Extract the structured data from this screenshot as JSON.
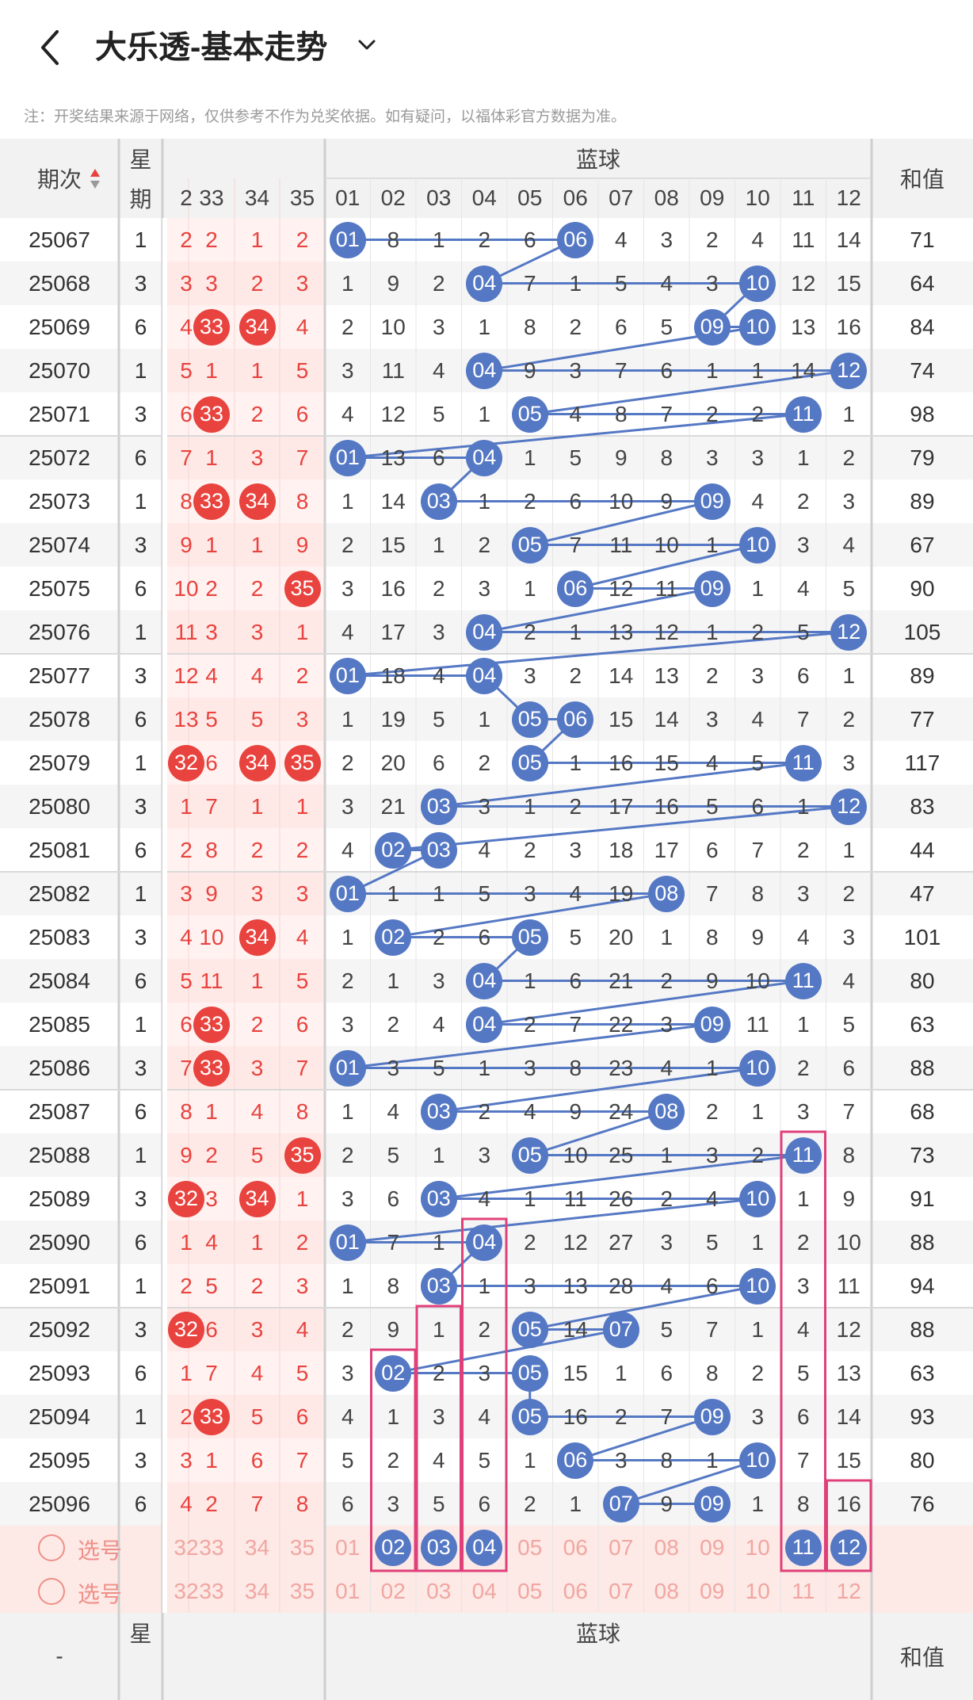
{
  "header": {
    "title": "大乐透-基本走势"
  },
  "note": "注：开奖结果来源于网络，仅供参考不作为兑奖依据。如有疑问，以福体彩官方数据为准。",
  "columns": {
    "period": "期次",
    "weekday_a": "星",
    "weekday_b": "期",
    "blue_group": "蓝球",
    "sum": "和值",
    "red_visible": [
      "2",
      "33",
      "34",
      "35"
    ],
    "blue": [
      "01",
      "02",
      "03",
      "04",
      "05",
      "06",
      "07",
      "08",
      "09",
      "10",
      "11",
      "12"
    ]
  },
  "rows": [
    {
      "p": "25067",
      "w": "1",
      "r": [
        "2",
        "2",
        "1",
        "2"
      ],
      "rh": [],
      "b": [
        "01",
        "8",
        "1",
        "2",
        "6",
        "06",
        "4",
        "3",
        "2",
        "4",
        "11",
        "14"
      ],
      "bh": [
        0,
        5
      ],
      "s": "71"
    },
    {
      "p": "25068",
      "w": "3",
      "r": [
        "3",
        "3",
        "2",
        "3"
      ],
      "rh": [],
      "b": [
        "1",
        "9",
        "2",
        "04",
        "7",
        "1",
        "5",
        "4",
        "3",
        "10",
        "12",
        "15"
      ],
      "bh": [
        3,
        9
      ],
      "s": "64"
    },
    {
      "p": "25069",
      "w": "6",
      "r": [
        "4",
        "33",
        "34",
        "4"
      ],
      "rh": [
        1,
        2
      ],
      "b": [
        "2",
        "10",
        "3",
        "1",
        "8",
        "2",
        "6",
        "5",
        "09",
        "10",
        "13",
        "16"
      ],
      "bh": [
        8,
        9
      ],
      "s": "84"
    },
    {
      "p": "25070",
      "w": "1",
      "r": [
        "5",
        "1",
        "1",
        "5"
      ],
      "rh": [],
      "b": [
        "3",
        "11",
        "4",
        "04",
        "9",
        "3",
        "7",
        "6",
        "1",
        "1",
        "14",
        "12"
      ],
      "bh": [
        3,
        11
      ],
      "s": "74"
    },
    {
      "p": "25071",
      "w": "3",
      "r": [
        "6",
        "33",
        "2",
        "6"
      ],
      "rh": [
        1
      ],
      "b": [
        "4",
        "12",
        "5",
        "1",
        "05",
        "4",
        "8",
        "7",
        "2",
        "2",
        "11",
        "1"
      ],
      "bh": [
        4,
        10
      ],
      "s": "98"
    },
    {
      "p": "25072",
      "w": "6",
      "r": [
        "7",
        "1",
        "3",
        "7"
      ],
      "rh": [],
      "b": [
        "01",
        "13",
        "6",
        "04",
        "1",
        "5",
        "9",
        "8",
        "3",
        "3",
        "1",
        "2"
      ],
      "bh": [
        0,
        3
      ],
      "s": "79"
    },
    {
      "p": "25073",
      "w": "1",
      "r": [
        "8",
        "33",
        "34",
        "8"
      ],
      "rh": [
        1,
        2
      ],
      "b": [
        "1",
        "14",
        "03",
        "1",
        "2",
        "6",
        "10",
        "9",
        "09",
        "4",
        "2",
        "3"
      ],
      "bh": [
        2,
        8
      ],
      "s": "89"
    },
    {
      "p": "25074",
      "w": "3",
      "r": [
        "9",
        "1",
        "1",
        "9"
      ],
      "rh": [],
      "b": [
        "2",
        "15",
        "1",
        "2",
        "05",
        "7",
        "11",
        "10",
        "1",
        "10",
        "3",
        "4"
      ],
      "bh": [
        4,
        9
      ],
      "s": "67"
    },
    {
      "p": "25075",
      "w": "6",
      "r": [
        "10",
        "2",
        "2",
        "35"
      ],
      "rh": [
        3
      ],
      "b": [
        "3",
        "16",
        "2",
        "3",
        "1",
        "06",
        "12",
        "11",
        "09",
        "1",
        "4",
        "5"
      ],
      "bh": [
        5,
        8
      ],
      "s": "90"
    },
    {
      "p": "25076",
      "w": "1",
      "r": [
        "11",
        "3",
        "3",
        "1"
      ],
      "rh": [],
      "b": [
        "4",
        "17",
        "3",
        "04",
        "2",
        "1",
        "13",
        "12",
        "1",
        "2",
        "5",
        "12"
      ],
      "bh": [
        3,
        11
      ],
      "s": "105"
    },
    {
      "p": "25077",
      "w": "3",
      "r": [
        "12",
        "4",
        "4",
        "2"
      ],
      "rh": [],
      "b": [
        "01",
        "18",
        "4",
        "04",
        "3",
        "2",
        "14",
        "13",
        "2",
        "3",
        "6",
        "1"
      ],
      "bh": [
        0,
        3
      ],
      "s": "89"
    },
    {
      "p": "25078",
      "w": "6",
      "r": [
        "13",
        "5",
        "5",
        "3"
      ],
      "rh": [],
      "b": [
        "1",
        "19",
        "5",
        "1",
        "05",
        "06",
        "15",
        "14",
        "3",
        "4",
        "7",
        "2"
      ],
      "bh": [
        4,
        5
      ],
      "s": "77"
    },
    {
      "p": "25079",
      "w": "1",
      "r": [
        "32",
        "6",
        "34",
        "35"
      ],
      "rh": [
        0,
        2,
        3
      ],
      "b": [
        "2",
        "20",
        "6",
        "2",
        "05",
        "1",
        "16",
        "15",
        "4",
        "5",
        "11",
        "3"
      ],
      "bh": [
        4,
        10
      ],
      "s": "117"
    },
    {
      "p": "25080",
      "w": "3",
      "r": [
        "1",
        "7",
        "1",
        "1"
      ],
      "rh": [],
      "b": [
        "3",
        "21",
        "03",
        "3",
        "1",
        "2",
        "17",
        "16",
        "5",
        "6",
        "1",
        "12"
      ],
      "bh": [
        2,
        11
      ],
      "s": "83"
    },
    {
      "p": "25081",
      "w": "6",
      "r": [
        "2",
        "8",
        "2",
        "2"
      ],
      "rh": [],
      "b": [
        "4",
        "02",
        "03",
        "4",
        "2",
        "3",
        "18",
        "17",
        "6",
        "7",
        "2",
        "1"
      ],
      "bh": [
        1,
        2
      ],
      "s": "44"
    },
    {
      "p": "25082",
      "w": "1",
      "r": [
        "3",
        "9",
        "3",
        "3"
      ],
      "rh": [],
      "b": [
        "01",
        "1",
        "1",
        "5",
        "3",
        "4",
        "19",
        "08",
        "7",
        "8",
        "3",
        "2"
      ],
      "bh": [
        0,
        7
      ],
      "s": "47"
    },
    {
      "p": "25083",
      "w": "3",
      "r": [
        "4",
        "10",
        "34",
        "4"
      ],
      "rh": [
        2
      ],
      "b": [
        "1",
        "02",
        "2",
        "6",
        "05",
        "5",
        "20",
        "1",
        "8",
        "9",
        "4",
        "3"
      ],
      "bh": [
        1,
        4
      ],
      "s": "101"
    },
    {
      "p": "25084",
      "w": "6",
      "r": [
        "5",
        "11",
        "1",
        "5"
      ],
      "rh": [],
      "b": [
        "2",
        "1",
        "3",
        "04",
        "1",
        "6",
        "21",
        "2",
        "9",
        "10",
        "11",
        "4"
      ],
      "bh": [
        3,
        10
      ],
      "s": "80"
    },
    {
      "p": "25085",
      "w": "1",
      "r": [
        "6",
        "33",
        "2",
        "6"
      ],
      "rh": [
        1
      ],
      "b": [
        "3",
        "2",
        "4",
        "04",
        "2",
        "7",
        "22",
        "3",
        "09",
        "11",
        "1",
        "5"
      ],
      "bh": [
        3,
        8
      ],
      "s": "63"
    },
    {
      "p": "25086",
      "w": "3",
      "r": [
        "7",
        "33",
        "3",
        "7"
      ],
      "rh": [
        1
      ],
      "b": [
        "01",
        "3",
        "5",
        "1",
        "3",
        "8",
        "23",
        "4",
        "1",
        "10",
        "2",
        "6"
      ],
      "bh": [
        0,
        9
      ],
      "s": "88"
    },
    {
      "p": "25087",
      "w": "6",
      "r": [
        "8",
        "1",
        "4",
        "8"
      ],
      "rh": [],
      "b": [
        "1",
        "4",
        "03",
        "2",
        "4",
        "9",
        "24",
        "08",
        "2",
        "1",
        "3",
        "7"
      ],
      "bh": [
        2,
        7
      ],
      "s": "68"
    },
    {
      "p": "25088",
      "w": "1",
      "r": [
        "9",
        "2",
        "5",
        "35"
      ],
      "rh": [
        3
      ],
      "b": [
        "2",
        "5",
        "1",
        "3",
        "05",
        "10",
        "25",
        "1",
        "3",
        "2",
        "11",
        "8"
      ],
      "bh": [
        4,
        10
      ],
      "s": "73"
    },
    {
      "p": "25089",
      "w": "3",
      "r": [
        "32",
        "3",
        "34",
        "1"
      ],
      "rh": [
        0,
        2
      ],
      "b": [
        "3",
        "6",
        "03",
        "4",
        "1",
        "11",
        "26",
        "2",
        "4",
        "10",
        "1",
        "9"
      ],
      "bh": [
        2,
        9
      ],
      "s": "91"
    },
    {
      "p": "25090",
      "w": "6",
      "r": [
        "1",
        "4",
        "1",
        "2"
      ],
      "rh": [],
      "b": [
        "01",
        "7",
        "1",
        "04",
        "2",
        "12",
        "27",
        "3",
        "5",
        "1",
        "2",
        "10"
      ],
      "bh": [
        0,
        3
      ],
      "s": "88"
    },
    {
      "p": "25091",
      "w": "1",
      "r": [
        "2",
        "5",
        "2",
        "3"
      ],
      "rh": [],
      "b": [
        "1",
        "8",
        "03",
        "1",
        "3",
        "13",
        "28",
        "4",
        "6",
        "10",
        "3",
        "11"
      ],
      "bh": [
        2,
        9
      ],
      "s": "94"
    },
    {
      "p": "25092",
      "w": "3",
      "r": [
        "32",
        "6",
        "3",
        "4"
      ],
      "rh": [
        0
      ],
      "b": [
        "2",
        "9",
        "1",
        "2",
        "05",
        "14",
        "07",
        "5",
        "7",
        "1",
        "4",
        "12"
      ],
      "bh": [
        4,
        6
      ],
      "s": "88"
    },
    {
      "p": "25093",
      "w": "6",
      "r": [
        "1",
        "7",
        "4",
        "5"
      ],
      "rh": [],
      "b": [
        "3",
        "02",
        "2",
        "3",
        "05",
        "15",
        "1",
        "6",
        "8",
        "2",
        "5",
        "13"
      ],
      "bh": [
        1,
        4
      ],
      "s": "63"
    },
    {
      "p": "25094",
      "w": "1",
      "r": [
        "2",
        "33",
        "5",
        "6"
      ],
      "rh": [
        1
      ],
      "b": [
        "4",
        "1",
        "3",
        "4",
        "05",
        "16",
        "2",
        "7",
        "09",
        "3",
        "6",
        "14"
      ],
      "bh": [
        4,
        8
      ],
      "s": "93"
    },
    {
      "p": "25095",
      "w": "3",
      "r": [
        "3",
        "1",
        "6",
        "7"
      ],
      "rh": [],
      "b": [
        "5",
        "2",
        "4",
        "5",
        "1",
        "06",
        "3",
        "8",
        "1",
        "10",
        "7",
        "15"
      ],
      "bh": [
        5,
        9
      ],
      "s": "80"
    },
    {
      "p": "25096",
      "w": "6",
      "r": [
        "4",
        "2",
        "7",
        "8"
      ],
      "rh": [],
      "b": [
        "6",
        "3",
        "5",
        "6",
        "2",
        "1",
        "07",
        "9",
        "09",
        "1",
        "8",
        "16"
      ],
      "bh": [
        6,
        8
      ],
      "s": "76"
    }
  ],
  "select": {
    "label": "选号",
    "red": [
      "32",
      "33",
      "34",
      "35"
    ],
    "blue_row1": [
      "01",
      "02",
      "03",
      "04",
      "05",
      "06",
      "07",
      "08",
      "09",
      "10",
      "11",
      "12"
    ],
    "blue_row1_selected": [
      1,
      2,
      3,
      10,
      11
    ],
    "blue_row2": [
      "01",
      "02",
      "03",
      "04",
      "05",
      "06",
      "07",
      "08",
      "09",
      "10",
      "11",
      "12"
    ]
  },
  "footer": {
    "period_stub": "-",
    "weekday_a": "星",
    "blue_group": "蓝球",
    "sum": "和值"
  },
  "colors": {
    "red": "#e8433e",
    "blue": "#5578c4",
    "line": "#5578c4",
    "frame": "#e0407a"
  }
}
